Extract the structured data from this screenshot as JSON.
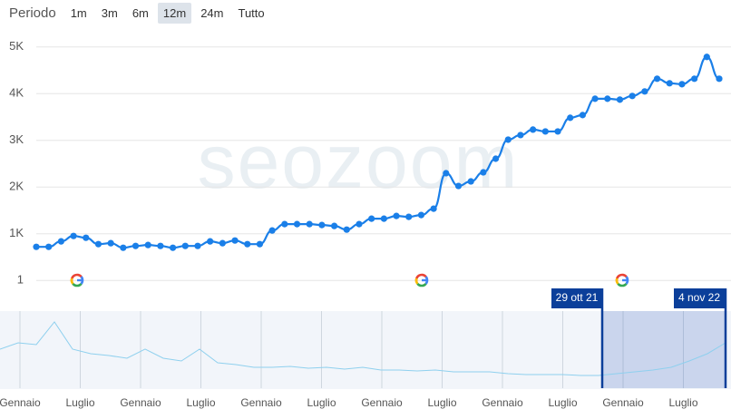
{
  "periodo": {
    "label": "Periodo",
    "buttons": [
      "1m",
      "3m",
      "6m",
      "12m",
      "24m",
      "Tutto"
    ],
    "active": 3
  },
  "chart_data": {
    "type": "line",
    "color": "#1a7fe8",
    "watermark": "seozoom",
    "values": [
      720,
      720,
      837,
      953,
      914,
      778,
      798,
      700,
      739,
      759,
      739,
      700,
      739,
      739,
      837,
      798,
      856,
      778,
      778,
      1070,
      1206,
      1206,
      1206,
      1187,
      1167,
      1089,
      1206,
      1323,
      1323,
      1381,
      1362,
      1401,
      1537,
      2296,
      2023,
      2121,
      2315,
      2607,
      3015,
      3113,
      3230,
      3191,
      3191,
      3483,
      3541,
      3891,
      3891,
      3872,
      3950,
      4047,
      4319,
      4222,
      4202,
      4319,
      4786,
      4319
    ],
    "ylim": [
      -500,
      5500
    ],
    "yticks": [
      1,
      {
        "value": 1000,
        "label": "1K"
      },
      {
        "value": 2000,
        "label": "2K"
      },
      {
        "value": 3000,
        "label": "3K"
      },
      {
        "value": 4000,
        "label": "4K"
      },
      {
        "value": 5000,
        "label": "5K"
      }
    ],
    "grid": true
  },
  "navigator": {
    "categories": [
      "Gennaio",
      "Luglio",
      "Gennaio",
      "Luglio",
      "Gennaio",
      "Luglio",
      "Gennaio",
      "Luglio",
      "Gennaio",
      "Luglio",
      "Gennaio",
      "Luglio"
    ],
    "range": [
      "29 ott 21",
      "4 nov 22"
    ],
    "values": [
      3036,
      3530,
      3389,
      5154,
      3036,
      2683,
      2542,
      2330,
      3036,
      2330,
      2118,
      3036,
      1977,
      1836,
      1624,
      1624,
      1694,
      1553,
      1624,
      1483,
      1624,
      1412,
      1412,
      1341,
      1412,
      1271,
      1271,
      1271,
      1130,
      1059,
      1059,
      1059,
      988,
      988,
      1130,
      1271,
      1412,
      1624,
      2118,
      2683,
      3530
    ],
    "ylim": [
      0,
      6000
    ]
  }
}
